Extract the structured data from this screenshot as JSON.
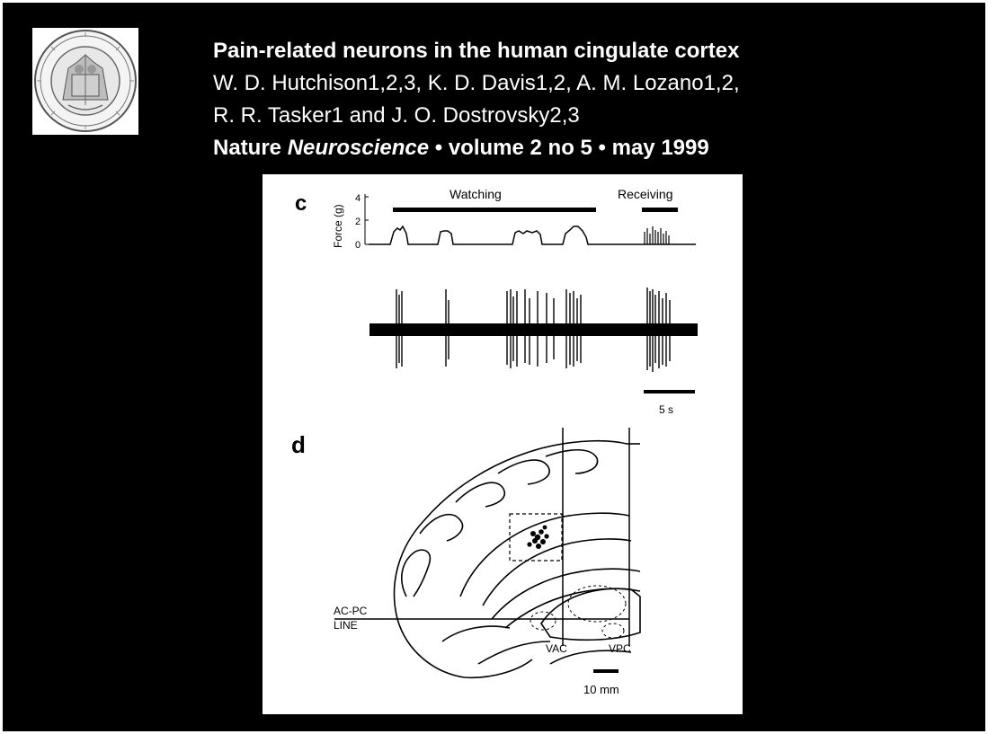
{
  "title": {
    "heading": "Pain-related neurons in the human cingulate cortex",
    "authors_line1": "W. D. Hutchison1,2,3, K. D. Davis1,2, A. M. Lozano1,2,",
    "authors_line2": "R. R. Tasker1 and J. O. Dostrovsky2,3",
    "journal_part1": "Nature ",
    "journal_italic": "Neuroscience",
    "journal_part2": " • volume 2 no 5 • may 1999"
  },
  "panel_c": {
    "label": "c",
    "ylabel": "Force (g)",
    "yticks": [
      "4",
      "2",
      "0"
    ],
    "watching_label": "Watching",
    "receiving_label": "Receiving",
    "scalebar_label": "5 s"
  },
  "panel_d": {
    "label": "d",
    "acpc_line1": "AC-PC",
    "acpc_line2": "LINE",
    "vac_label": "VAC",
    "vpc_label": "VPC",
    "scalebar_label": "10 mm"
  },
  "colors": {
    "background": "#000000",
    "text": "#ffffff",
    "figure_bg": "#ffffff"
  }
}
